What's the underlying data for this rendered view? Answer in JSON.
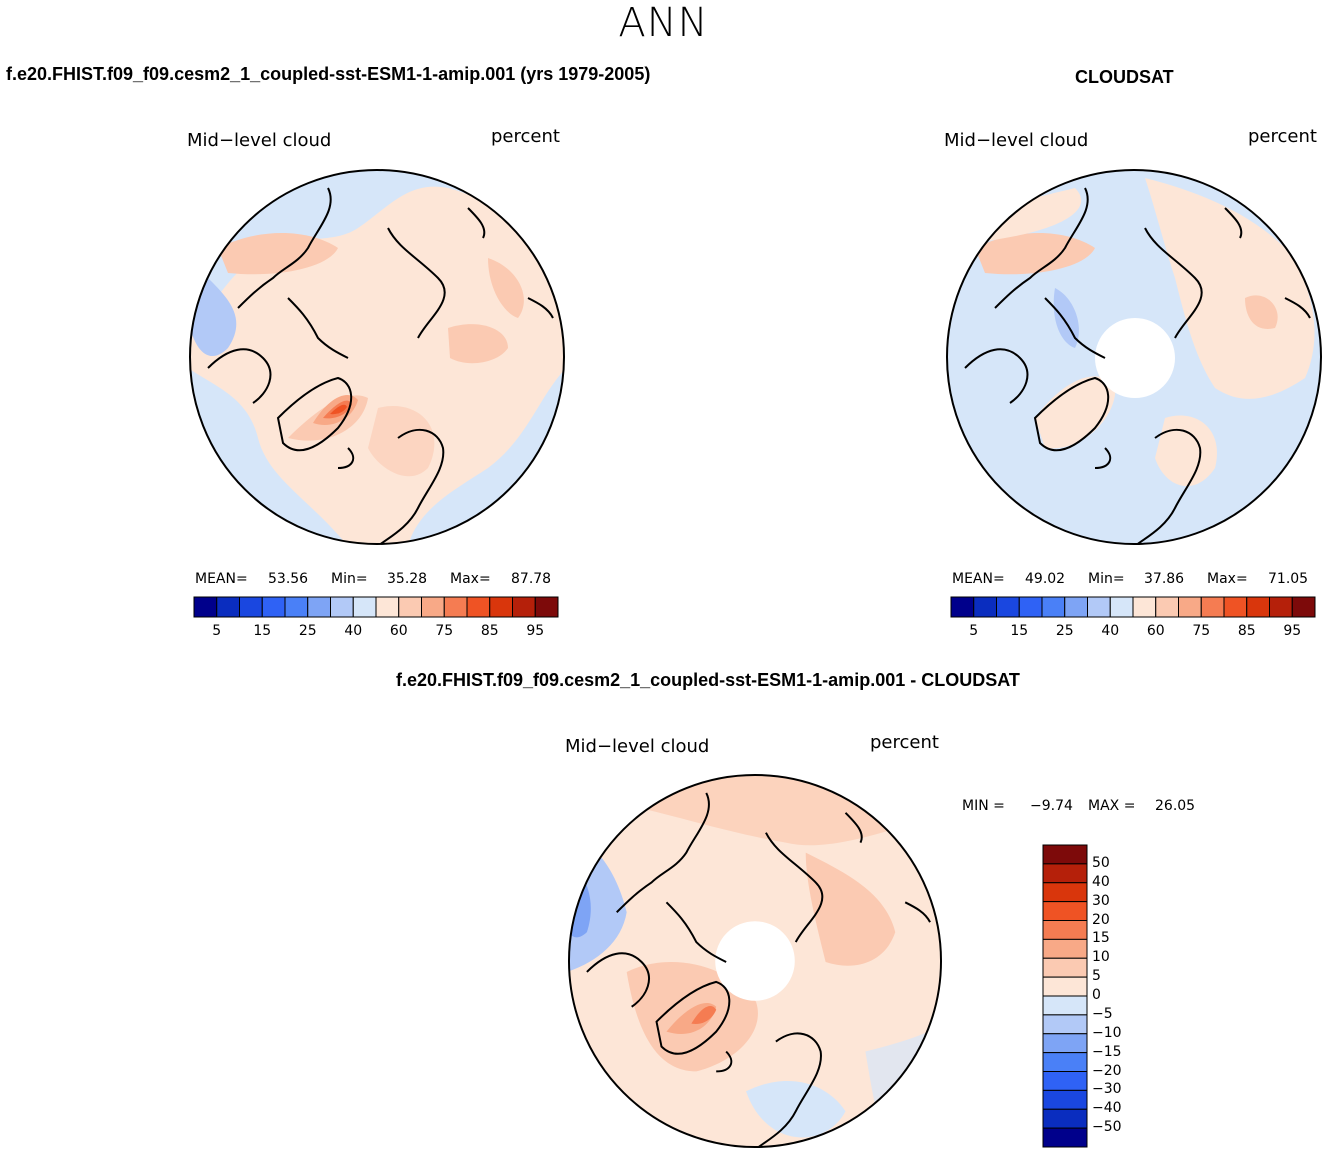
{
  "figure": {
    "season": "ANN"
  },
  "panels": {
    "model": {
      "title": "f.e20.FHIST.f09_f09.cesm2_1_coupled-sst-ESM1-1-amip.001 (yrs 1979-2005)",
      "variable": "Mid−level cloud",
      "units": "percent",
      "stats": {
        "mean_label": "MEAN=",
        "mean": "53.56",
        "min_label": "Min=",
        "min": "35.28",
        "max_label": "Max=",
        "max": "87.78"
      }
    },
    "obs": {
      "title": "CLOUDSAT",
      "variable": "Mid−level cloud",
      "units": "percent",
      "stats": {
        "mean_label": "MEAN=",
        "mean": "49.02",
        "min_label": "Min=",
        "min": "37.86",
        "max_label": "Max=",
        "max": "71.05"
      }
    },
    "diff": {
      "title": "f.e20.FHIST.f09_f09.cesm2_1_coupled-sst-ESM1-1-amip.001 - CLOUDSAT",
      "variable": "Mid−level cloud",
      "units": "percent",
      "stats": {
        "min_label": "MIN =",
        "min": "−9.74",
        "max_label": "MAX =",
        "max": "26.05"
      }
    }
  },
  "colorbars": {
    "abs_levels": {
      "ticks": [
        "5",
        "15",
        "25",
        "40",
        "60",
        "75",
        "85",
        "95"
      ],
      "colors": [
        "#00008b",
        "#0a2dbf",
        "#1a47e0",
        "#2f62f5",
        "#4a80f7",
        "#7ea4f5",
        "#b2c9f7",
        "#d6e6f9",
        "#fde6d7",
        "#fbcab2",
        "#f8a987",
        "#f57c52",
        "#ef5324",
        "#d9360c",
        "#b5200a",
        "#7d0a0a"
      ]
    },
    "diff_levels": {
      "ticks": [
        "50",
        "40",
        "30",
        "20",
        "15",
        "10",
        "5",
        "0",
        "−5",
        "−10",
        "−15",
        "−20",
        "−30",
        "−40",
        "−50"
      ],
      "colors": [
        "#7d0a0a",
        "#b5200a",
        "#d9360c",
        "#ef5324",
        "#f57c52",
        "#f8a987",
        "#fbcab2",
        "#fde6d7",
        "#d6e6f9",
        "#b2c9f7",
        "#7ea4f5",
        "#4a80f7",
        "#2f62f5",
        "#1a47e0",
        "#0a2dbf",
        "#00008b"
      ]
    }
  },
  "chart_data": {
    "type": "polar-contour-map",
    "projection": "north polar stereographic",
    "field": "Mid-level cloud fraction (percent), annual mean",
    "maps": [
      {
        "name": "model",
        "mean": 53.56,
        "min": 35.28,
        "max": 87.78
      },
      {
        "name": "CLOUDSAT",
        "mean": 49.02,
        "min": 37.86,
        "max": 71.05,
        "missing_pole_data": true
      },
      {
        "name": "model - CLOUDSAT",
        "min": -9.74,
        "max": 26.05,
        "missing_pole_data": true
      }
    ],
    "abs_contour_levels": [
      5,
      10,
      15,
      20,
      25,
      30,
      40,
      50,
      60,
      65,
      75,
      80,
      85,
      90,
      95
    ],
    "diff_contour_levels": [
      -50,
      -40,
      -30,
      -20,
      -15,
      -10,
      -5,
      0,
      5,
      10,
      15,
      20,
      30,
      40,
      50
    ]
  }
}
